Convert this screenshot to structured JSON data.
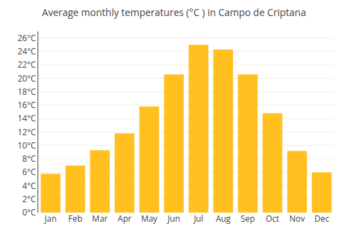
{
  "chart_data": {
    "type": "bar",
    "title": "Average monthly temperatures (°C ) in Campo de Criptana",
    "categories": [
      "Jan",
      "Feb",
      "Mar",
      "Apr",
      "May",
      "Jun",
      "Jul",
      "Aug",
      "Sep",
      "Oct",
      "Nov",
      "Dec"
    ],
    "values": [
      5.8,
      7.0,
      9.3,
      11.8,
      15.8,
      20.6,
      25.0,
      24.3,
      20.6,
      14.8,
      9.2,
      6.0
    ],
    "color": "#FFC020",
    "ylim": [
      0,
      27
    ],
    "yticks": [
      {
        "value": 0,
        "label": "0°C"
      },
      {
        "value": 2,
        "label": "2°C"
      },
      {
        "value": 4,
        "label": "4°C"
      },
      {
        "value": 6,
        "label": "6°C"
      },
      {
        "value": 8,
        "label": "8°C"
      },
      {
        "value": 10,
        "label": "10°C"
      },
      {
        "value": 12,
        "label": "12°C"
      },
      {
        "value": 14,
        "label": "14°C"
      },
      {
        "value": 16,
        "label": "16°C"
      },
      {
        "value": 18,
        "label": "18°C"
      },
      {
        "value": 20,
        "label": "20°C"
      },
      {
        "value": 22,
        "label": "22°C"
      },
      {
        "value": 24,
        "label": "24°C"
      },
      {
        "value": 26,
        "label": "26°C"
      }
    ],
    "grid": true
  }
}
